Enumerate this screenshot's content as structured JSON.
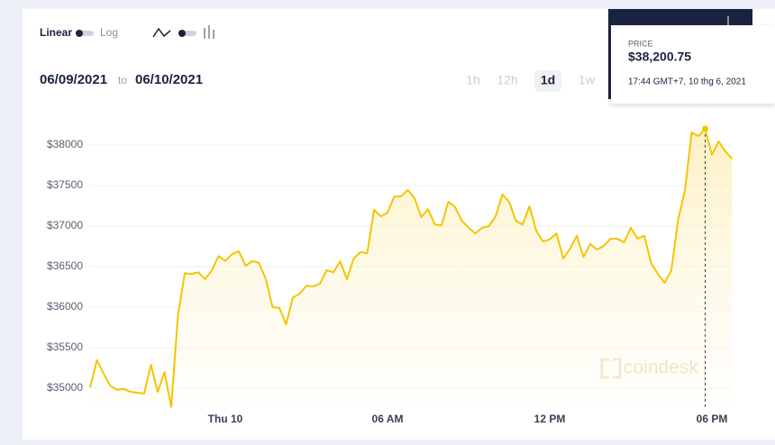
{
  "controls": {
    "scale_linear": "Linear",
    "scale_log": "Log",
    "date_from": "06/09/2021",
    "date_sep": "to",
    "date_to": "06/10/2021",
    "ranges": [
      "1h",
      "12h",
      "1d",
      "1w"
    ],
    "selected_range": 2
  },
  "tooltip": {
    "label": "PRICE",
    "price": "$38,200.75",
    "time": "17:44 GMT+7, 10 thg 6, 2021",
    "index": 91
  },
  "watermark": "coindesk",
  "chart_data": {
    "type": "line",
    "color": "#f5c400",
    "grid": true,
    "categories": [
      null,
      null,
      null,
      null,
      null,
      null,
      null,
      null,
      null,
      null,
      null,
      null,
      null,
      null,
      null,
      null,
      null,
      null,
      null,
      null,
      "Thu 10",
      null,
      null,
      null,
      null,
      null,
      null,
      null,
      null,
      null,
      null,
      null,
      null,
      null,
      null,
      null,
      null,
      null,
      null,
      null,
      null,
      null,
      null,
      null,
      "06 AM",
      null,
      null,
      null,
      null,
      null,
      null,
      null,
      null,
      null,
      null,
      null,
      null,
      null,
      null,
      null,
      null,
      null,
      null,
      null,
      null,
      null,
      null,
      null,
      "12 PM",
      null,
      null,
      null,
      null,
      null,
      null,
      null,
      null,
      null,
      null,
      null,
      null,
      null,
      null,
      null,
      null,
      null,
      null,
      null,
      null,
      null,
      null,
      null,
      "06 PM",
      null,
      null,
      null
    ],
    "values": [
      35010,
      35345,
      35180,
      35030,
      34980,
      34990,
      34955,
      34945,
      34935,
      35290,
      34955,
      35200,
      34770,
      35900,
      36420,
      36410,
      36430,
      36345,
      36455,
      36630,
      36570,
      36655,
      36690,
      36510,
      36570,
      36545,
      36345,
      36000,
      35990,
      35790,
      36120,
      36165,
      36265,
      36255,
      36290,
      36455,
      36430,
      36565,
      36345,
      36600,
      36680,
      36665,
      37200,
      37120,
      37165,
      37365,
      37365,
      37445,
      37345,
      37110,
      37210,
      37020,
      37010,
      37300,
      37235,
      37065,
      36980,
      36910,
      36980,
      37000,
      37120,
      37390,
      37300,
      37065,
      37020,
      37245,
      36945,
      36810,
      36835,
      36910,
      36600,
      36720,
      36880,
      36620,
      36780,
      36710,
      36755,
      36845,
      36845,
      36800,
      36980,
      36845,
      36880,
      36545,
      36410,
      36300,
      36455,
      37080,
      37435,
      38155,
      38110,
      38200.75,
      37880,
      38045,
      37920,
      37830
    ],
    "ylim": [
      34700,
      38450
    ],
    "yticks": [
      {
        "value": 35000,
        "label": "$35000"
      },
      {
        "value": 35500,
        "label": "$35500"
      },
      {
        "value": 36000,
        "label": "$36000"
      },
      {
        "value": 36500,
        "label": "$36500"
      },
      {
        "value": 37000,
        "label": "$37000"
      },
      {
        "value": 37500,
        "label": "$37500"
      },
      {
        "value": 38000,
        "label": "$38000"
      }
    ]
  }
}
